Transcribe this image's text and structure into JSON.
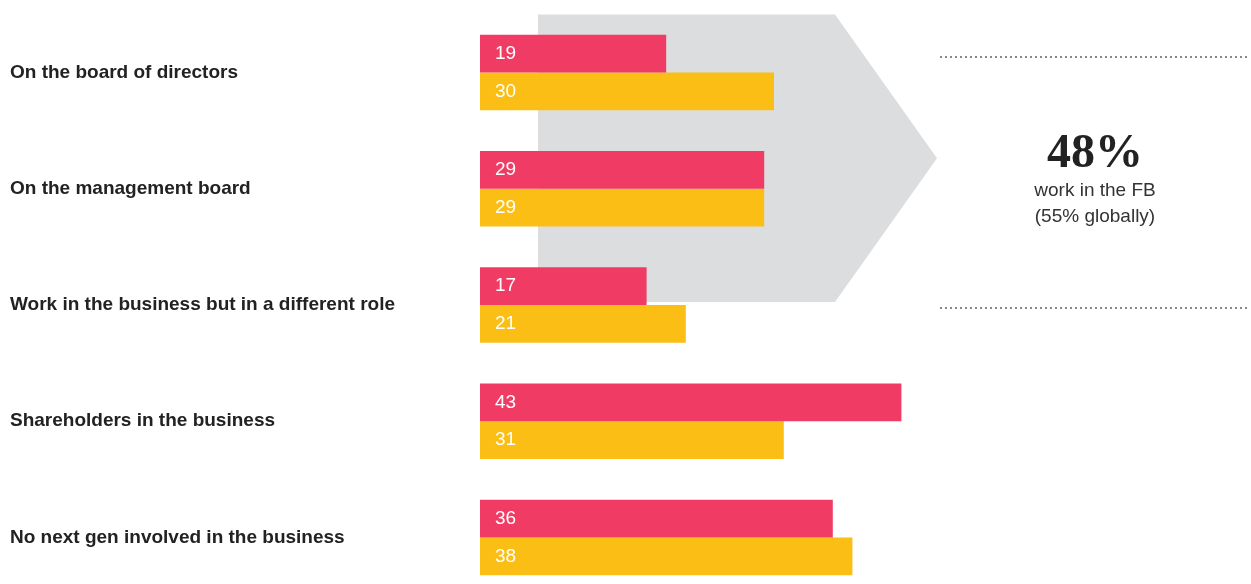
{
  "chart_data": {
    "type": "bar",
    "orientation": "horizontal",
    "categories": [
      "On the board of directors",
      "On the management board",
      "Work in the business but in a different role",
      "Shareholders in the business",
      "No next gen involved in the business"
    ],
    "series": [
      {
        "color": "#f03c64",
        "values": [
          19,
          29,
          17,
          43,
          36
        ]
      },
      {
        "color": "#fbbe14",
        "values": [
          30,
          29,
          21,
          31,
          38
        ]
      }
    ],
    "data_labels": true,
    "legend": false,
    "tick_labels": "y",
    "bands": [
      {
        "axis": "y",
        "from": "On the board of directors",
        "to": "Work in the business but in a different role",
        "color": "#dcdddf"
      }
    ],
    "annotations": [
      "48%",
      "work in the FB",
      "(55% globally)"
    ]
  }
}
